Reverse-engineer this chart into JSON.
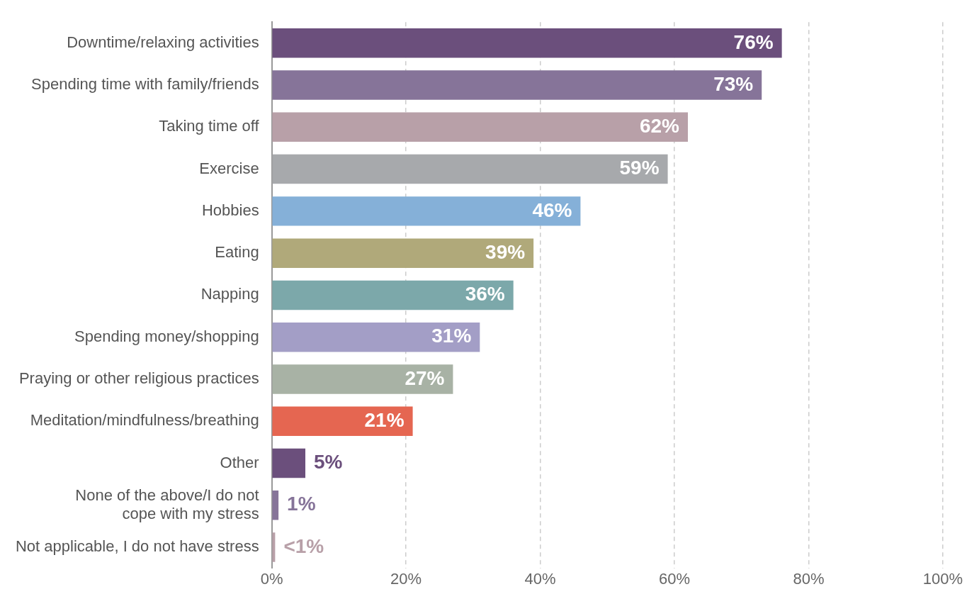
{
  "chart_data": {
    "type": "bar",
    "orientation": "horizontal",
    "categories": [
      "Downtime/relaxing activities",
      "Spending time with family/friends",
      "Taking time off",
      "Exercise",
      "Hobbies",
      "Eating",
      "Napping",
      "Spending money/shopping",
      "Praying or other religious practices",
      "Meditation/mindfulness/breathing",
      "Other",
      "None of the above/I do not cope with my stress",
      "Not applicable, I do not have stress"
    ],
    "values": [
      76,
      73,
      62,
      59,
      46,
      39,
      36,
      31,
      27,
      21,
      5,
      1,
      0.5
    ],
    "value_labels": [
      "76%",
      "73%",
      "62%",
      "59%",
      "46%",
      "39%",
      "36%",
      "31%",
      "27%",
      "21%",
      "5%",
      "1%",
      "<1%"
    ],
    "colors": [
      "#6b4f7c",
      "#867499",
      "#b8a0a8",
      "#a7a9ac",
      "#85b0d8",
      "#b0a97a",
      "#7ca8aa",
      "#a39ec6",
      "#a8b2a5",
      "#e56651",
      "#6b4f7c",
      "#867499",
      "#b8a0a8"
    ],
    "xlim": [
      0,
      100
    ],
    "xticks": [
      {
        "value": 0,
        "label": "0%"
      },
      {
        "value": 20,
        "label": "20%"
      },
      {
        "value": 40,
        "label": "40%"
      },
      {
        "value": 60,
        "label": "60%"
      },
      {
        "value": 80,
        "label": "80%"
      },
      {
        "value": 100,
        "label": "100%"
      }
    ],
    "grid": "x",
    "legend": false
  }
}
